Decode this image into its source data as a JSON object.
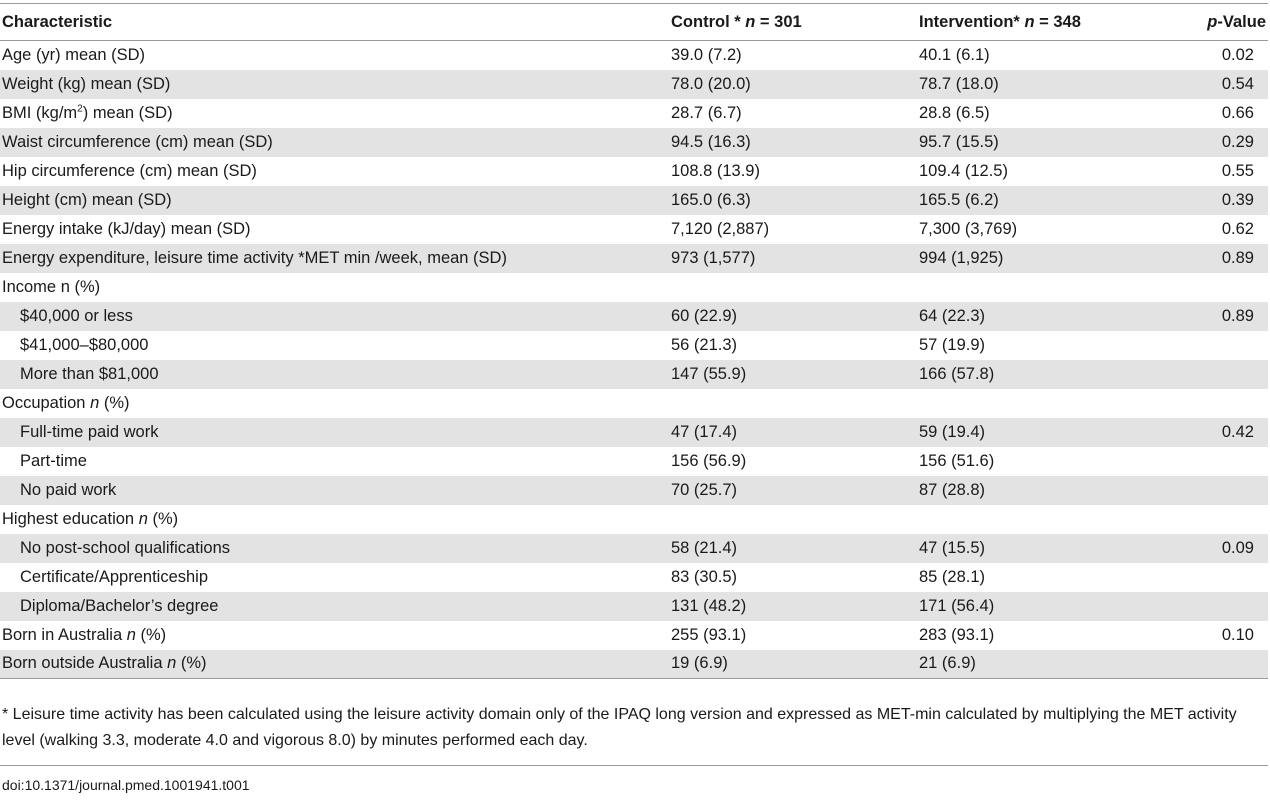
{
  "header": {
    "characteristic": "Characteristic",
    "control_label": "Control * ",
    "control_n": "n",
    "control_count": " = 301",
    "intervention_label": "Intervention* ",
    "intervention_n": "n",
    "intervention_count": " = 348",
    "p_italic": "p",
    "p_rest": "-Value"
  },
  "rows": [
    {
      "label": "Age (yr) mean (SD)",
      "control": "39.0 (7.2)",
      "intervention": "40.1 (6.1)",
      "p": "0.02"
    },
    {
      "label": "Weight (kg) mean (SD)",
      "control": "78.0 (20.0)",
      "intervention": "78.7 (18.0)",
      "p": "0.54"
    },
    {
      "label_pre": "BMI (kg/m",
      "label_sup": "2",
      "label_post": ") mean (SD)",
      "control": "28.7 (6.7)",
      "intervention": "28.8 (6.5)",
      "p": "0.66"
    },
    {
      "label": "Waist circumference (cm) mean (SD)",
      "control": "94.5 (16.3)",
      "intervention": "95.7 (15.5)",
      "p": "0.29"
    },
    {
      "label": "Hip circumference (cm) mean (SD)",
      "control": "108.8 (13.9)",
      "intervention": "109.4 (12.5)",
      "p": "0.55"
    },
    {
      "label": "Height (cm) mean (SD)",
      "control": "165.0 (6.3)",
      "intervention": "165.5 (6.2)",
      "p": "0.39"
    },
    {
      "label": "Energy intake (kJ/day) mean (SD)",
      "control": "7,120 (2,887)",
      "intervention": "7,300 (3,769)",
      "p": "0.62"
    },
    {
      "label": "Energy expenditure, leisure time activity *MET min /week, mean (SD)",
      "control": "973 (1,577)",
      "intervention": "994 (1,925)",
      "p": "0.89"
    },
    {
      "label": "Income n (%)",
      "control": "",
      "intervention": "",
      "p": ""
    },
    {
      "label": "$40,000 or less",
      "control": "60 (22.9)",
      "intervention": "64 (22.3)",
      "p": "0.89"
    },
    {
      "label": "$41,000–$80,000",
      "control": "56 (21.3)",
      "intervention": "57 (19.9)",
      "p": ""
    },
    {
      "label": "More than $81,000",
      "control": "147 (55.9)",
      "intervention": "166 (57.8)",
      "p": ""
    },
    {
      "label_pre": "Occupation ",
      "label_it": "n",
      "label_post": " (%)",
      "control": "",
      "intervention": "",
      "p": ""
    },
    {
      "label": "Full-time paid work",
      "control": "47 (17.4)",
      "intervention": "59 (19.4)",
      "p": "0.42"
    },
    {
      "label": "Part-time",
      "control": "156 (56.9)",
      "intervention": "156 (51.6)",
      "p": ""
    },
    {
      "label": "No paid work",
      "control": "70 (25.7)",
      "intervention": "87 (28.8)",
      "p": ""
    },
    {
      "label_pre": "Highest education ",
      "label_it": "n",
      "label_post": " (%)",
      "control": "",
      "intervention": "",
      "p": ""
    },
    {
      "label": "No post-school qualifications",
      "control": "58 (21.4)",
      "intervention": "47 (15.5)",
      "p": "0.09"
    },
    {
      "label": "Certificate/Apprenticeship",
      "control": "83 (30.5)",
      "intervention": "85 (28.1)",
      "p": ""
    },
    {
      "label": "Diploma/Bachelor’s degree",
      "control": "131 (48.2)",
      "intervention": "171 (56.4)",
      "p": ""
    },
    {
      "label_pre": "Born in Australia ",
      "label_it": "n",
      "label_post": " (%)",
      "control": "255 (93.1)",
      "intervention": "283 (93.1)",
      "p": "0.10"
    },
    {
      "label_pre": "Born outside Australia ",
      "label_it": "n",
      "label_post": " (%)",
      "control": "19 (6.9)",
      "intervention": "21 (6.9)",
      "p": ""
    }
  ],
  "footnote": "* Leisure time activity has been calculated using the leisure activity domain only of the IPAQ long version and expressed as MET-min calculated by multiplying the MET activity level (walking 3.3, moderate 4.0 and vigorous 8.0) by minutes performed each day.",
  "doi": "doi:10.1371/journal.pmed.1001941.t001"
}
